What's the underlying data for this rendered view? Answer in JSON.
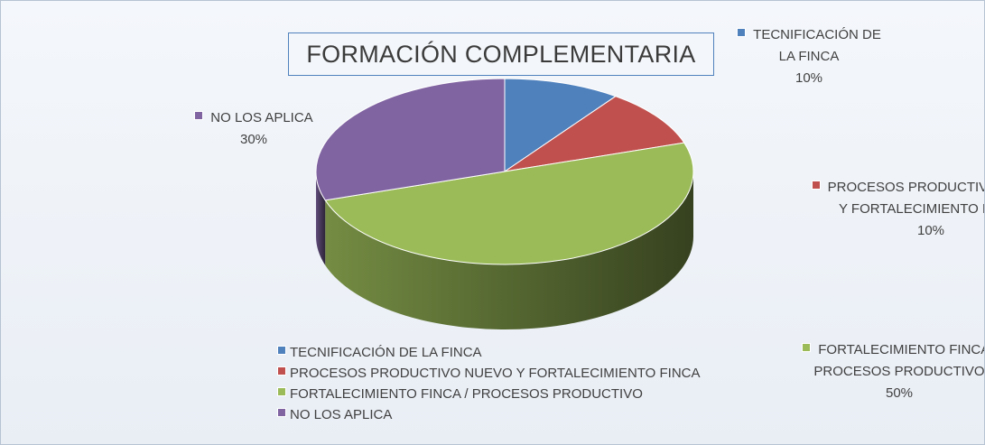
{
  "chart_data": {
    "type": "pie",
    "title": "FORMACIÓN COMPLEMENTARIA",
    "categories": [
      "TECNIFICACIÓN DE LA FINCA",
      "PROCESOS PRODUCTIVO NUEVO Y FORTALECIMIENTO FINCA",
      "FORTALECIMIENTO FINCA / PROCESOS PRODUCTIVO",
      "NO LOS APLICA"
    ],
    "values": [
      10,
      10,
      50,
      30
    ],
    "value_labels": [
      "10%",
      "10%",
      "50%",
      "30%"
    ],
    "colors": [
      "#4f81bd",
      "#c0504d",
      "#9bbb59",
      "#8064a2"
    ],
    "legend": "bottom"
  }
}
